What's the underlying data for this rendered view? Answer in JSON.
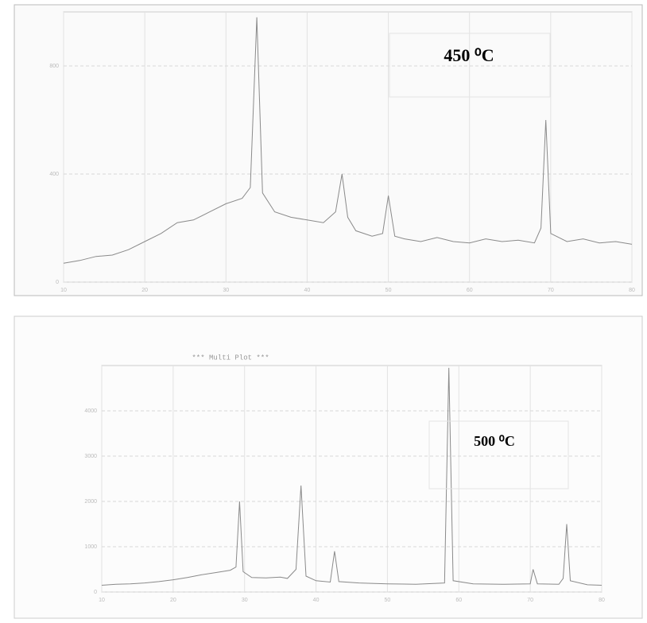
{
  "chart_data": [
    {
      "type": "line",
      "annotation": "450 ⁰C",
      "color": "#8a8a8a",
      "x": [
        10,
        12,
        14,
        16,
        18,
        20,
        22,
        24,
        26,
        28,
        30,
        32,
        33,
        33.8,
        34.5,
        36,
        38,
        40,
        42,
        43.5,
        44.3,
        45,
        46,
        48,
        49.3,
        50,
        50.8,
        52,
        54,
        56,
        58,
        60,
        62,
        64,
        66,
        68,
        68.8,
        69.4,
        70,
        72,
        74,
        76,
        78,
        80
      ],
      "values": [
        70,
        80,
        95,
        100,
        120,
        150,
        180,
        220,
        230,
        260,
        290,
        310,
        350,
        980,
        330,
        260,
        240,
        230,
        220,
        260,
        400,
        240,
        190,
        170,
        180,
        320,
        170,
        160,
        150,
        165,
        150,
        145,
        160,
        150,
        155,
        145,
        200,
        600,
        180,
        150,
        160,
        145,
        150,
        140
      ],
      "xlim": [
        10,
        80
      ],
      "xticks": [
        10,
        20,
        30,
        40,
        50,
        60,
        70,
        80
      ],
      "ylim": [
        0,
        1000
      ],
      "yticks": [
        0,
        400,
        800
      ],
      "grid": true
    },
    {
      "type": "line",
      "title": "***   Multi Plot   ***",
      "annotation": "500 ⁰C",
      "color": "#8a8a8a",
      "x": [
        10,
        12,
        14,
        16,
        18,
        20,
        22,
        24,
        26,
        28,
        28.8,
        29.3,
        29.8,
        31,
        33,
        35,
        36,
        37.2,
        37.9,
        38.6,
        40,
        42,
        42.6,
        43.2,
        46,
        50,
        54,
        58,
        58.6,
        59.2,
        62,
        66,
        70,
        70.4,
        71,
        74,
        74.6,
        75.1,
        75.6,
        78,
        80
      ],
      "values": [
        150,
        170,
        180,
        200,
        230,
        270,
        320,
        380,
        430,
        480,
        550,
        2000,
        450,
        320,
        310,
        330,
        300,
        500,
        2350,
        350,
        250,
        220,
        900,
        230,
        200,
        180,
        170,
        200,
        4950,
        250,
        180,
        170,
        180,
        500,
        180,
        170,
        300,
        1500,
        250,
        160,
        150
      ],
      "xlim": [
        10,
        80
      ],
      "xticks": [
        10,
        20,
        30,
        40,
        50,
        60,
        70,
        80
      ],
      "ylim": [
        0,
        5000
      ],
      "yticks": [
        0,
        1000,
        2000,
        3000,
        4000
      ],
      "grid": true
    }
  ]
}
